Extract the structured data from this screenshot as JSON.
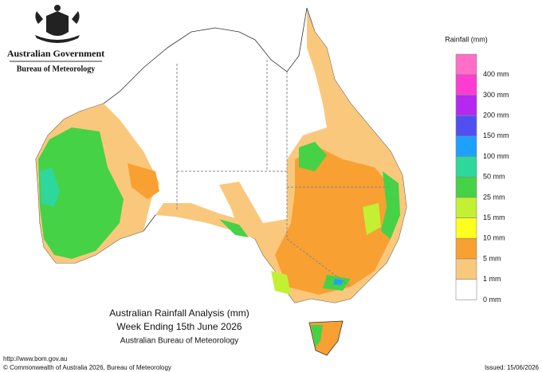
{
  "header": {
    "government": "Australian Government",
    "bureau": "Bureau of Meteorology"
  },
  "legend": {
    "title": "Rainfall (mm)",
    "bins": [
      {
        "label": "400 mm",
        "color": "#ff6ec7"
      },
      {
        "label": "300 mm",
        "color": "#ff3cd2"
      },
      {
        "label": "200 mm",
        "color": "#b428f0"
      },
      {
        "label": "150 mm",
        "color": "#5050f0"
      },
      {
        "label": "100 mm",
        "color": "#1ea0ff"
      },
      {
        "label": "50 mm",
        "color": "#2ed79b"
      },
      {
        "label": "25 mm",
        "color": "#46d246"
      },
      {
        "label": "15 mm",
        "color": "#c3f032"
      },
      {
        "label": "10 mm",
        "color": "#ffff1e"
      },
      {
        "label": "5 mm",
        "color": "#f8a032"
      },
      {
        "label": "1 mm",
        "color": "#fac87d"
      },
      {
        "label": "0 mm",
        "color": "#ffffff"
      }
    ]
  },
  "caption": {
    "title": "Australian Rainfall Analysis (mm)",
    "subtitle": "Week Ending 15th June 2026",
    "source": "Australian Bureau of Meteorology"
  },
  "footer": {
    "url": "http://www.bom.gov.au",
    "copyright": "© Commonwealth of Australia 2026, Bureau of Meteorology",
    "issued": "Issued: 15/06/2026"
  }
}
